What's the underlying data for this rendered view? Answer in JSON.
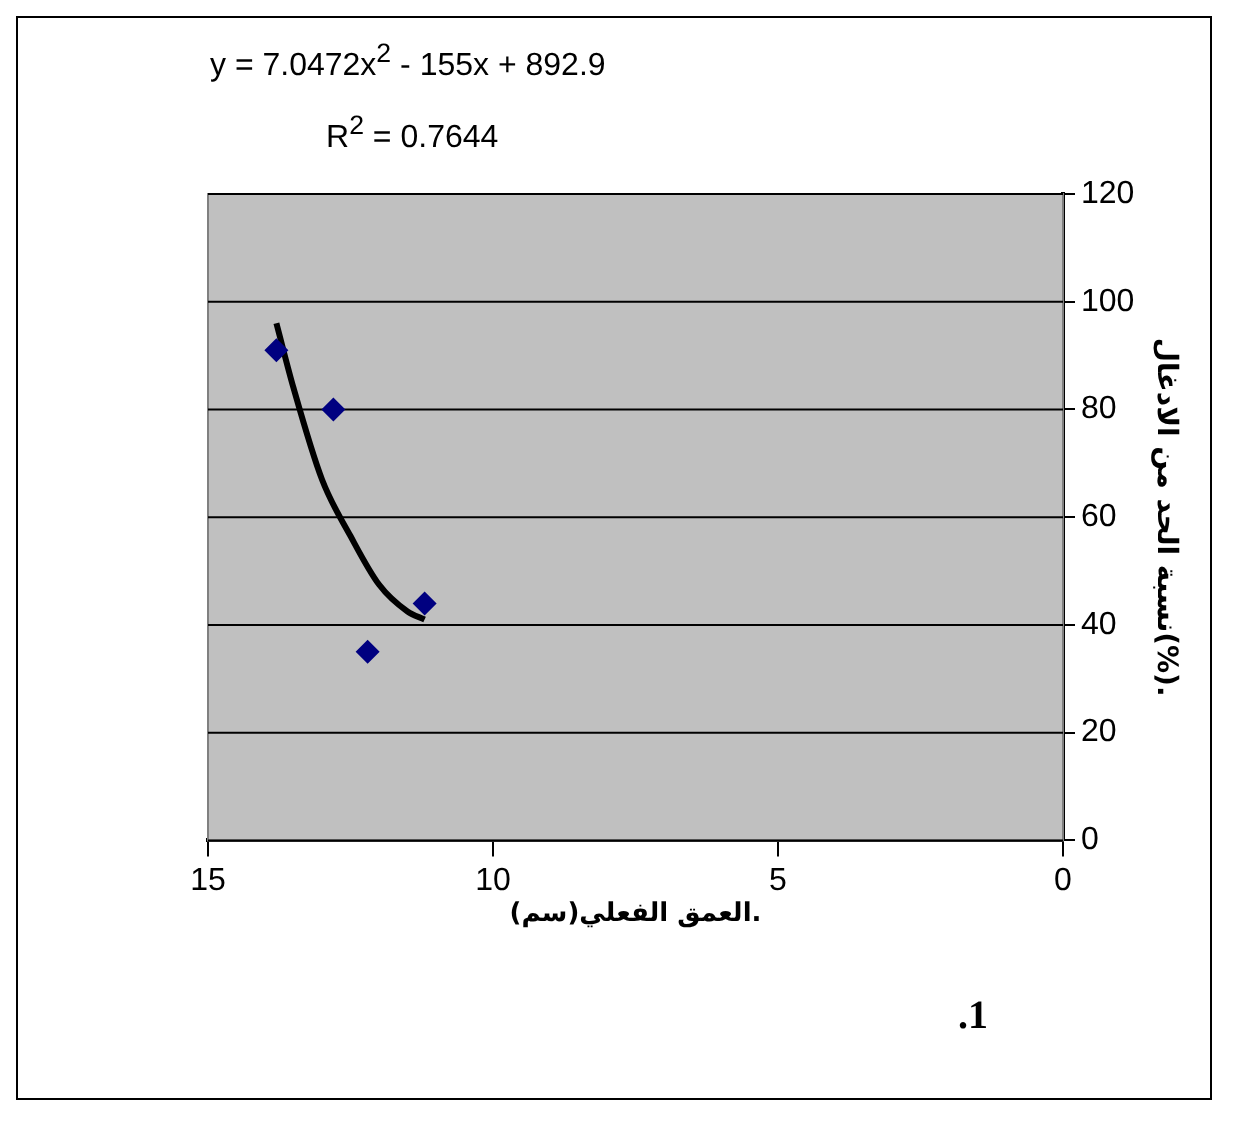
{
  "chart_data": {
    "type": "scatter",
    "xlabel": "العمق الفعلي(سم).",
    "ylabel": "نسبة الحد من الادغال(%).",
    "annotations": [
      "y = 7.0472x$^{2}$ - 155x + 892.9",
      "R$^{2}$ = 0.7644",
      ".1"
    ],
    "series": [
      {
        "color": "#000080",
        "marker": "diamond",
        "x": [
          13.8,
          12.8,
          12.2,
          11.2
        ],
        "values": [
          91,
          80,
          35,
          44
        ]
      },
      {
        "type": "line",
        "color": "#000000",
        "marker": "none",
        "x": [
          13.8,
          13.5,
          13,
          12.5,
          12,
          11.5,
          11.2
        ],
        "values": [
          96,
          84,
          67,
          56.5,
          47.5,
          42.5,
          41
        ]
      }
    ],
    "xlim": [
      15,
      0
    ],
    "xticks": [
      15,
      10,
      5,
      0
    ],
    "ylim": [
      0,
      120
    ],
    "yticks": [
      0,
      20,
      40,
      60,
      80,
      100,
      120
    ],
    "grid": "y",
    "legend": false
  }
}
